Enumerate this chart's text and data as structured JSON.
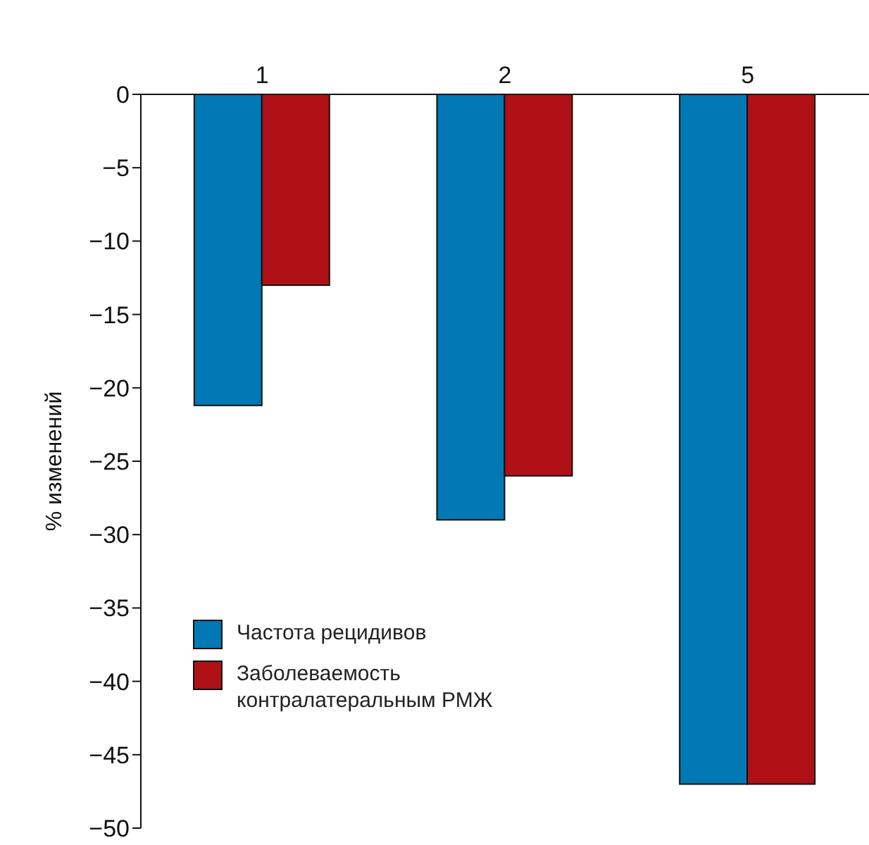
{
  "chart_data": {
    "type": "bar",
    "ylabel": "% изменений",
    "categories": [
      "1",
      "2",
      "5"
    ],
    "series": [
      {
        "name": "Частота рецидивов",
        "color": "#0079b5",
        "values": [
          -21.2,
          -29,
          -47
        ]
      },
      {
        "name": "Заболеваемость контралатеральным РМЖ",
        "color": "#b01117",
        "values": [
          -13,
          -26,
          -47
        ]
      }
    ],
    "ylim": [
      -50,
      0
    ],
    "yticks": [
      0,
      -5,
      -10,
      -15,
      -20,
      -25,
      -30,
      -35,
      -40,
      -45,
      -50
    ],
    "grid": false,
    "legend": "bottom left"
  }
}
